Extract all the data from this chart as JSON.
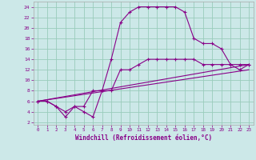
{
  "xlabel": "Windchill (Refroidissement éolien,°C)",
  "xlim": [
    -0.5,
    23.5
  ],
  "ylim": [
    1.5,
    25
  ],
  "xticks": [
    0,
    1,
    2,
    3,
    4,
    5,
    6,
    7,
    8,
    9,
    10,
    11,
    12,
    13,
    14,
    15,
    16,
    17,
    18,
    19,
    20,
    21,
    22,
    23
  ],
  "yticks": [
    2,
    4,
    6,
    8,
    10,
    12,
    14,
    16,
    18,
    20,
    22,
    24
  ],
  "bg_color": "#cce8e8",
  "line_color": "#880088",
  "grid_color": "#99ccbb",
  "series1_x": [
    0,
    1,
    2,
    3,
    4,
    5,
    6,
    7,
    8,
    9,
    10,
    11,
    12,
    13,
    14,
    15,
    16,
    17,
    18,
    19,
    20,
    21,
    22,
    23
  ],
  "series1_y": [
    6,
    6,
    5,
    3,
    5,
    4,
    3,
    8,
    14,
    21,
    23,
    24,
    24,
    24,
    24,
    24,
    23,
    18,
    17,
    17,
    16,
    13,
    13,
    13
  ],
  "series2_x": [
    0,
    1,
    2,
    3,
    4,
    5,
    6,
    7,
    8,
    9,
    10,
    11,
    12,
    13,
    14,
    15,
    16,
    17,
    18,
    19,
    20,
    21,
    22,
    23
  ],
  "series2_y": [
    6,
    6,
    5,
    4,
    5,
    5,
    8,
    8,
    8,
    12,
    12,
    13,
    14,
    14,
    14,
    14,
    14,
    14,
    13,
    13,
    13,
    13,
    12,
    13
  ],
  "series3_x": [
    0,
    23
  ],
  "series3_y": [
    6,
    13
  ],
  "series4_x": [
    0,
    23
  ],
  "series4_y": [
    6,
    12
  ]
}
